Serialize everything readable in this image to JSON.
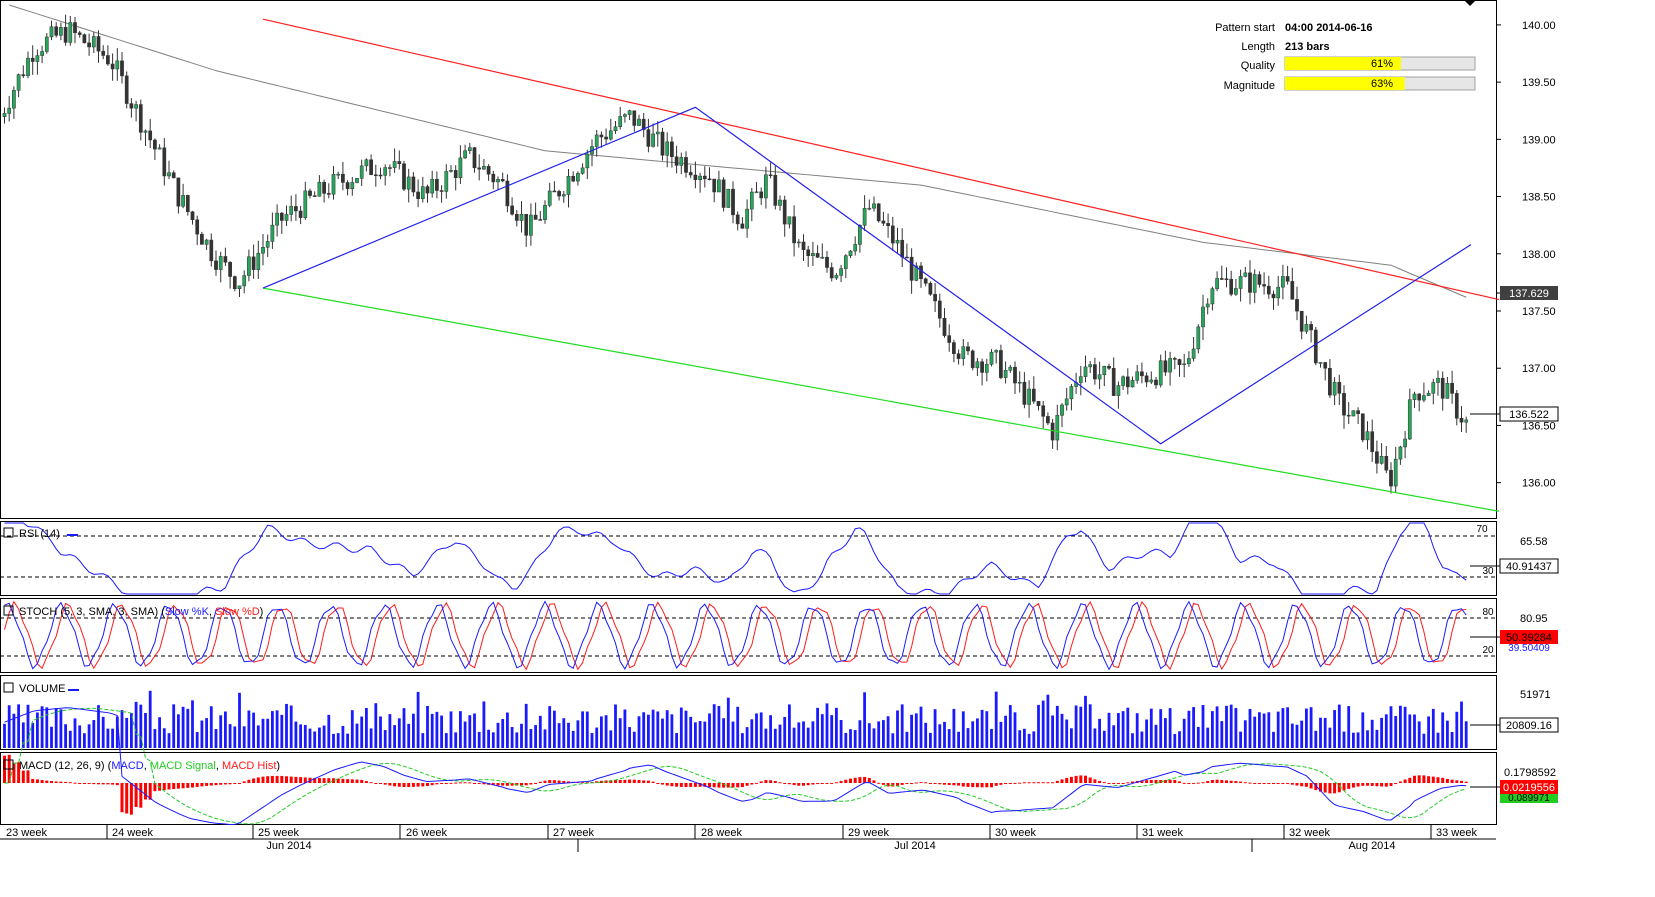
{
  "pattern_info": {
    "pattern_start_label": "Pattern start",
    "pattern_start_value": "04:00 2014-06-16",
    "length_label": "Length",
    "length_value": "213 bars",
    "quality_label": "Quality",
    "quality_value": "61%",
    "quality_fraction": 0.61,
    "magnitude_label": "Magnitude",
    "magnitude_value": "63%",
    "magnitude_fraction": 0.63
  },
  "colors": {
    "up_candle": "#26a65b",
    "down_candle": "#333333",
    "resistance": "#ff2020",
    "support": "#20dd20",
    "pattern": "#2020ee",
    "ma": "#808080",
    "meter_fill": "#ffff00",
    "stoch_k": "#1a1aff",
    "stoch_d": "#ff1a1a",
    "macd_line": "#1a1aff",
    "macd_signal": "#22cc22",
    "macd_hist": "#ff0000"
  },
  "chart_data": {
    "type": "candlestick",
    "price_axis": {
      "min": 135.7,
      "max": 140.2,
      "ticks": [
        "140.00",
        "139.50",
        "139.00",
        "138.50",
        "138.00",
        "137.50",
        "137.00",
        "136.50",
        "136.00"
      ],
      "tick_values": [
        140.0,
        139.5,
        139.0,
        138.5,
        138.0,
        137.5,
        137.0,
        136.5,
        136.0
      ]
    },
    "current_price_label": "136.522",
    "current_price": 136.522,
    "line_value_label": "137.629",
    "line_value": 137.629,
    "pattern_points": [
      {
        "bar": 0,
        "price": 137.7
      },
      {
        "bar": 92,
        "price": 139.28
      },
      {
        "bar": 191,
        "price": 136.34
      },
      {
        "bar": 257,
        "price": 138.08
      }
    ],
    "resistance_line": [
      {
        "bar": 0,
        "price": 140.05
      },
      {
        "bar": 263,
        "price": 137.6
      }
    ],
    "support_line": [
      {
        "bar": 0,
        "price": 137.7
      },
      {
        "bar": 263,
        "price": 135.75
      }
    ],
    "x_axis": {
      "week_labels": [
        "23 week",
        "24 week",
        "25 week",
        "26 week",
        "27 week",
        "28 week",
        "29 week",
        "30 week",
        "31 week",
        "32 week",
        "33 week"
      ],
      "month_labels": [
        "Jun 2014",
        "Jul 2014",
        "Aug 2014"
      ]
    },
    "indicators": {
      "rsi": {
        "title": "RSI (14)",
        "levels": [
          70,
          30
        ],
        "level_labels": [
          "70",
          "30"
        ],
        "tick_label": "65.58",
        "current_label": "40.91437",
        "current": 40.91
      },
      "stoch": {
        "title_prefix": "STOCH (5, 3, SMA, 3, SMA) (",
        "k_name": "Slow %K",
        "separator": ", ",
        "d_name": "Slow %D",
        "title_suffix": ")",
        "levels": [
          80,
          20
        ],
        "level_labels": [
          "80",
          "20"
        ],
        "tick_label": "80.95",
        "current_label": "50.39284",
        "current": 50.39,
        "hidden_label": "39.50409"
      },
      "volume": {
        "title": "VOLUME",
        "tick_label": "51971",
        "current_label": "20809.16",
        "current": 20809.16
      },
      "macd": {
        "title_prefix": "MACD (12, 26, 9) (",
        "line_name": "MACD",
        "separator": ", ",
        "signal_name": "MACD Signal",
        "hist_name": "MACD Hist",
        "title_suffix": ")",
        "tick_label": "0.1798592",
        "current_label": "0.0219556",
        "current": 0.0219556,
        "second_label": "0.089971"
      }
    }
  }
}
